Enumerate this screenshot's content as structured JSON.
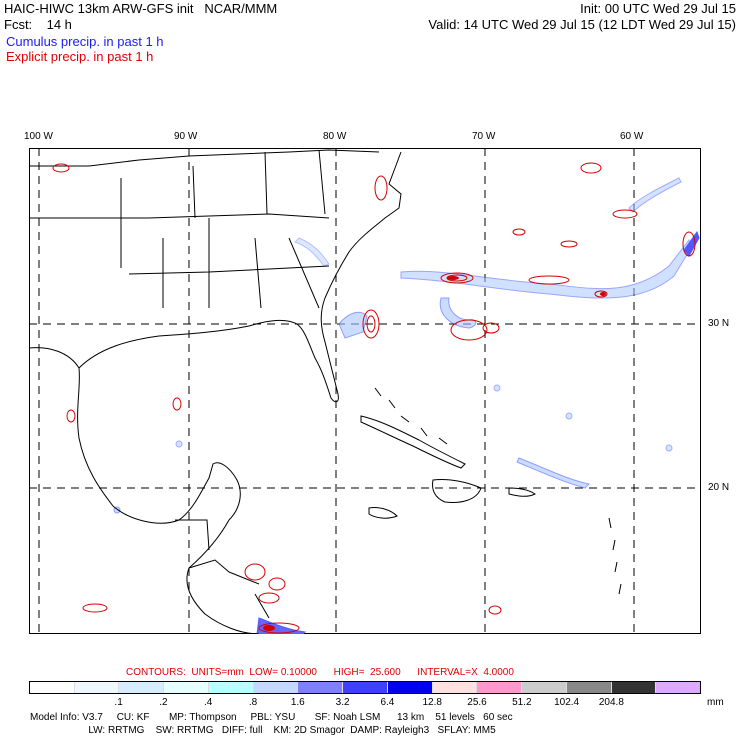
{
  "header": {
    "model_title": "HAIC-HIWC 13km ARW-GFS init   NCAR/MMM",
    "init_time": "Init: 00 UTC Wed 29 Jul 15",
    "forecast": "Fcst:    14 h",
    "valid_time": "Valid: 14 UTC Wed 29 Jul 15 (12 LDT Wed 29 Jul 15)",
    "cumulus_label": "Cumulus precip. in past 1 h",
    "explicit_label": "Explicit precip. in past 1 h"
  },
  "map": {
    "lon_labels": [
      "100 W",
      "90 W",
      "80 W",
      "70 W",
      "60 W"
    ],
    "lat_labels": [
      "30 N",
      "20 N"
    ],
    "colors": {
      "coast": "#000000",
      "grid": "#000000",
      "explicit": "#d40000",
      "cumulus": "#3355ff"
    }
  },
  "contours": {
    "line": "CONTOURS:  UNITS=mm  LOW= 0.10000      HIGH=  25.600      INTERVAL=X  4.0000"
  },
  "colorbar": {
    "colors": [
      "#ffffff",
      "#f0f8ff",
      "#d8ecff",
      "#e6ffff",
      "#b8ffff",
      "#c4d8ff",
      "#8080ff",
      "#4040ff",
      "#0000ee",
      "#ffe0e0",
      "#ff99cc",
      "#cccccc",
      "#888888",
      "#333333",
      "#ddaaff"
    ],
    "labels": [
      ".1",
      ".2",
      ".4",
      ".8",
      "1.6",
      "3.2",
      "6.4",
      "12.8",
      "25.6",
      "51.2",
      "102.4",
      "204.8"
    ],
    "unit": "mm"
  },
  "model_info": {
    "line1": "Model Info: V3.7     CU: KF       MP: Thompson     PBL: YSU       SF: Noah LSM      13 km    51 levels   60 sec",
    "line2": "                     LW: RRTMG    SW: RRTMG   DIFF: full    KM: 2D Smagor  DAMP: Rayleigh3   SFLAY: MM5"
  }
}
